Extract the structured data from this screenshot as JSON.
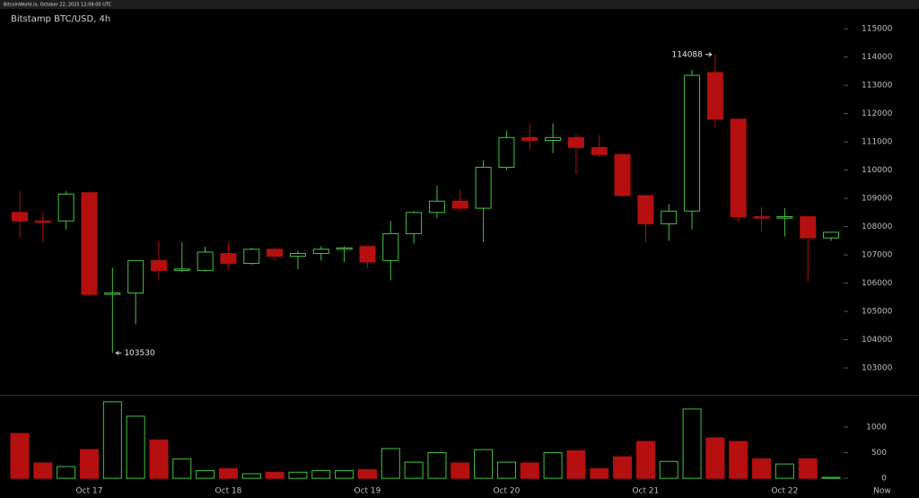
{
  "chart_data": {
    "type": "candlestick",
    "header": "BitcoinWorld.io, October 22, 2025 12:08:00 UTC",
    "title": "Bitstamp BTC/USD, 4h",
    "categories": [
      null,
      null,
      null,
      "Oct 17",
      null,
      null,
      null,
      null,
      null,
      "Oct 18",
      null,
      null,
      null,
      null,
      null,
      "Oct 19",
      null,
      null,
      null,
      null,
      null,
      "Oct 20",
      null,
      null,
      null,
      null,
      null,
      "Oct 21",
      null,
      null,
      null,
      null,
      null,
      "Oct 22",
      null,
      null
    ],
    "now_label": "Now",
    "open": [
      108500,
      108200,
      108200,
      109200,
      105600,
      105650,
      106800,
      106450,
      106450,
      107050,
      106700,
      107200,
      106950,
      107050,
      107200,
      107300,
      106800,
      107750,
      108500,
      108900,
      108650,
      110100,
      111150,
      111050,
      111150,
      110800,
      110550,
      109100,
      108100,
      108550,
      113450,
      111800,
      108350,
      108300,
      108350,
      107600
    ],
    "high": [
      109250,
      108500,
      109250,
      109250,
      106550,
      106800,
      107500,
      107450,
      107300,
      107450,
      107250,
      107250,
      107150,
      107300,
      107300,
      107300,
      108200,
      108550,
      109450,
      109300,
      110350,
      111400,
      111650,
      111650,
      111300,
      111250,
      110600,
      109100,
      108800,
      113550,
      114088,
      111800,
      108700,
      108650,
      108350,
      107800
    ],
    "low": [
      107600,
      107450,
      107900,
      105550,
      103530,
      104550,
      106100,
      106400,
      106400,
      106500,
      106650,
      106800,
      106500,
      106800,
      106750,
      106550,
      106100,
      107400,
      108300,
      108550,
      107450,
      110000,
      110700,
      110600,
      109850,
      110450,
      109050,
      107450,
      107500,
      107900,
      111500,
      108150,
      107850,
      107650,
      106050,
      107500
    ],
    "close": [
      108200,
      108150,
      109150,
      105600,
      105650,
      106800,
      106450,
      106500,
      107100,
      106700,
      107200,
      106950,
      107050,
      107200,
      107250,
      106750,
      107750,
      108500,
      108900,
      108650,
      110100,
      111150,
      111050,
      111150,
      110800,
      110550,
      109100,
      108100,
      108550,
      113350,
      111800,
      108350,
      108300,
      108350,
      107600,
      107800
    ],
    "volume": [
      875,
      300,
      230,
      560,
      1490,
      1210,
      750,
      380,
      150,
      190,
      90,
      120,
      120,
      150,
      150,
      170,
      580,
      315,
      500,
      300,
      560,
      315,
      300,
      500,
      540,
      190,
      420,
      720,
      330,
      1350,
      790,
      720,
      380,
      280,
      380,
      20
    ],
    "up_color": "#45c445",
    "down_color": "#b5100f",
    "ylim": [
      102050,
      115700
    ],
    "yticks": [
      103000,
      104000,
      105000,
      106000,
      107000,
      108000,
      109000,
      110000,
      111000,
      112000,
      113000,
      114000,
      115000
    ],
    "volume_ylim": [
      -120,
      1610
    ],
    "volume_yticks": [
      0,
      500,
      1000
    ]
  }
}
